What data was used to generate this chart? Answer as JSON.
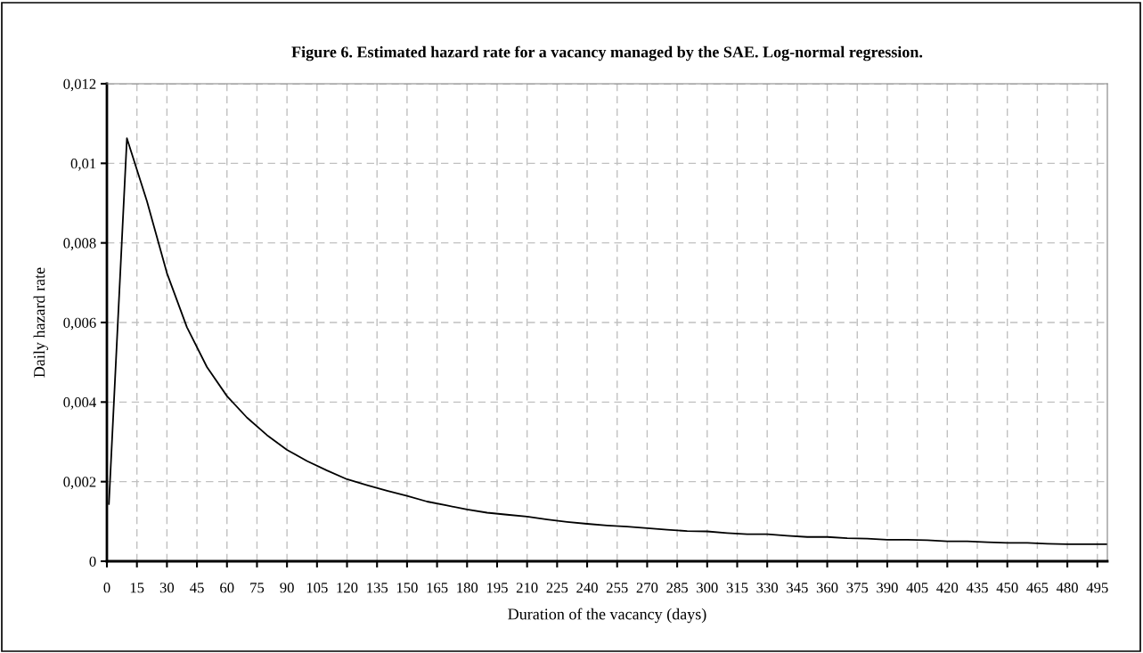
{
  "chart_data": {
    "type": "line",
    "title": "Figure 6. Estimated hazard rate for a vacancy managed by the SAE. Log-normal regression.",
    "xlabel": "Duration of the vacancy (days)",
    "ylabel": "Daily hazard rate",
    "x": [
      1,
      10,
      20,
      30,
      40,
      50,
      60,
      70,
      80,
      90,
      100,
      110,
      120,
      130,
      140,
      150,
      160,
      170,
      180,
      190,
      200,
      210,
      220,
      230,
      240,
      250,
      260,
      270,
      280,
      290,
      300,
      310,
      320,
      330,
      340,
      350,
      360,
      370,
      380,
      390,
      400,
      410,
      420,
      430,
      440,
      450,
      460,
      470,
      480,
      490,
      500
    ],
    "series": [
      {
        "color": "#000000",
        "values": [
          0.00144,
          0.01063,
          0.00905,
          0.00724,
          0.00588,
          0.00488,
          0.00415,
          0.00361,
          0.00317,
          0.0028,
          0.00252,
          0.00228,
          0.00206,
          0.00191,
          0.00177,
          0.00164,
          0.0015,
          0.0014,
          0.0013,
          0.00122,
          0.00117,
          0.00112,
          0.00105,
          0.00099,
          0.00094,
          0.0009,
          0.00087,
          0.00083,
          0.00079,
          0.00076,
          0.00075,
          0.00071,
          0.00068,
          0.00068,
          0.00064,
          0.00061,
          0.00061,
          0.00058,
          0.00057,
          0.00054,
          0.00054,
          0.00053,
          0.0005,
          0.0005,
          0.00048,
          0.00046,
          0.00046,
          0.00044,
          0.00043,
          0.00043,
          0.00043
        ]
      }
    ],
    "xlim": [
      0,
      500
    ],
    "xticks": [
      0,
      15,
      30,
      45,
      60,
      75,
      90,
      105,
      120,
      135,
      150,
      165,
      180,
      195,
      210,
      225,
      240,
      255,
      270,
      285,
      300,
      315,
      330,
      345,
      360,
      375,
      390,
      405,
      420,
      435,
      450,
      465,
      480,
      495
    ],
    "ylim": [
      0,
      0.012
    ],
    "yticks": [
      0,
      {
        "value": 0.002,
        "label": "0,002"
      },
      {
        "value": 0.004,
        "label": "0,004"
      },
      {
        "value": 0.006,
        "label": "0,006"
      },
      {
        "value": 0.008,
        "label": "0,008"
      },
      {
        "value": 0.01,
        "label": "0,01"
      },
      {
        "value": 0.012,
        "label": "0,012"
      }
    ],
    "grid": true,
    "legend": false,
    "marker": "none",
    "line_style": "solid"
  }
}
